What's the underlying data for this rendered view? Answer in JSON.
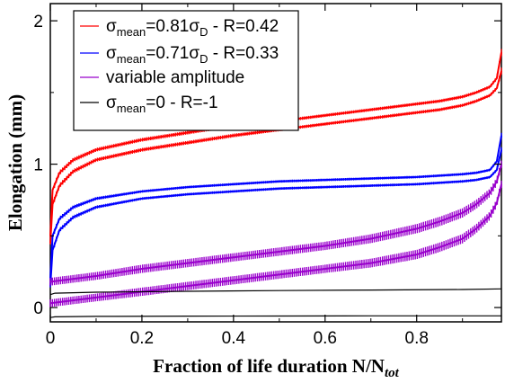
{
  "chart_data": {
    "type": "line",
    "xlabel": "Fraction of life duration N/N",
    "xlabel_sub": "tot",
    "ylabel": "Elongation (mm)",
    "xlim": [
      0,
      0.985
    ],
    "ylim": [
      -0.1,
      2.12
    ],
    "x_ticks": [
      0,
      0.2,
      0.4,
      0.6,
      0.8
    ],
    "x_tick_labels": [
      "0",
      "0.2",
      "0.4",
      "0.6",
      "0.8"
    ],
    "y_ticks": [
      0,
      1,
      2
    ],
    "y_tick_labels": [
      "0",
      "1",
      "2"
    ],
    "grid": false,
    "legend_position": "top-left",
    "series": [
      {
        "legend": {
          "main": "σ",
          "sub": "mean",
          "rest": "=0.81σ",
          "sub2": "D",
          "tail": " - R=0.42"
        },
        "color": "#ff0000",
        "band": true,
        "upper": {
          "x": [
            0,
            0.005,
            0.02,
            0.05,
            0.1,
            0.2,
            0.3,
            0.4,
            0.5,
            0.6,
            0.7,
            0.8,
            0.85,
            0.9,
            0.93,
            0.96,
            0.975,
            0.985
          ],
          "y": [
            0.5,
            0.82,
            0.94,
            1.03,
            1.1,
            1.17,
            1.22,
            1.27,
            1.3,
            1.34,
            1.38,
            1.42,
            1.44,
            1.47,
            1.5,
            1.54,
            1.6,
            1.78
          ]
        },
        "lower": {
          "x": [
            0,
            0.005,
            0.02,
            0.05,
            0.1,
            0.2,
            0.3,
            0.4,
            0.5,
            0.6,
            0.7,
            0.8,
            0.85,
            0.9,
            0.93,
            0.96,
            0.975,
            0.985
          ],
          "y": [
            0.45,
            0.72,
            0.85,
            0.95,
            1.03,
            1.1,
            1.15,
            1.2,
            1.24,
            1.28,
            1.32,
            1.36,
            1.38,
            1.41,
            1.44,
            1.48,
            1.53,
            1.65
          ]
        }
      },
      {
        "legend": {
          "main": "σ",
          "sub": "mean",
          "rest": "=0.71σ",
          "sub2": "D",
          "tail": " - R=0.33"
        },
        "color": "#0000ff",
        "band": true,
        "upper": {
          "x": [
            0,
            0.005,
            0.02,
            0.05,
            0.1,
            0.2,
            0.3,
            0.4,
            0.5,
            0.6,
            0.7,
            0.8,
            0.85,
            0.9,
            0.93,
            0.96,
            0.975,
            0.985
          ],
          "y": [
            0.2,
            0.5,
            0.62,
            0.7,
            0.76,
            0.81,
            0.84,
            0.86,
            0.88,
            0.89,
            0.9,
            0.91,
            0.92,
            0.93,
            0.94,
            0.96,
            1.02,
            1.2
          ]
        },
        "lower": {
          "x": [
            0,
            0.005,
            0.02,
            0.05,
            0.1,
            0.2,
            0.3,
            0.4,
            0.5,
            0.6,
            0.7,
            0.8,
            0.85,
            0.9,
            0.93,
            0.96,
            0.975,
            0.985
          ],
          "y": [
            0.15,
            0.4,
            0.54,
            0.63,
            0.7,
            0.76,
            0.79,
            0.81,
            0.83,
            0.84,
            0.85,
            0.86,
            0.87,
            0.88,
            0.89,
            0.91,
            0.96,
            1.1
          ]
        }
      },
      {
        "legend": {
          "main": "variable amplitude"
        },
        "color": "#9900cc",
        "band": true,
        "upper": {
          "x": [
            0,
            0.1,
            0.2,
            0.3,
            0.4,
            0.5,
            0.6,
            0.7,
            0.8,
            0.85,
            0.9,
            0.93,
            0.96,
            0.975,
            0.985
          ],
          "y": [
            0.18,
            0.22,
            0.27,
            0.31,
            0.35,
            0.39,
            0.43,
            0.48,
            0.55,
            0.6,
            0.66,
            0.72,
            0.8,
            0.88,
            1.0
          ]
        },
        "lower": {
          "x": [
            0,
            0.1,
            0.2,
            0.3,
            0.4,
            0.5,
            0.6,
            0.7,
            0.8,
            0.85,
            0.9,
            0.93,
            0.96,
            0.975,
            0.985
          ],
          "y": [
            0.03,
            0.07,
            0.11,
            0.15,
            0.19,
            0.23,
            0.27,
            0.31,
            0.37,
            0.42,
            0.48,
            0.55,
            0.64,
            0.73,
            0.86
          ]
        }
      },
      {
        "legend": {
          "main": "σ",
          "sub": "mean",
          "rest": "=0 - R=-1"
        },
        "color": "#000000",
        "band": true,
        "upper": {
          "x": [
            0,
            0.01,
            0.1,
            0.3,
            0.5,
            0.7,
            0.9,
            0.985
          ],
          "y": [
            0.09,
            0.1,
            0.107,
            0.113,
            0.118,
            0.122,
            0.126,
            0.13
          ]
        },
        "lower": {
          "x": [
            0,
            0.01,
            0.1,
            0.3,
            0.5,
            0.7,
            0.9,
            0.985
          ],
          "y": [
            -0.07,
            -0.065,
            -0.062,
            -0.06,
            -0.059,
            -0.058,
            -0.058,
            -0.058
          ]
        }
      }
    ]
  }
}
